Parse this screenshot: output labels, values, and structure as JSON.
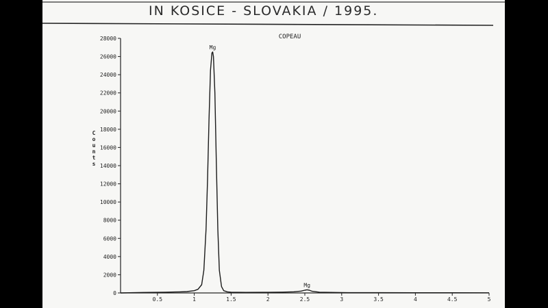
{
  "page": {
    "handwritten_note": "IN KOSICE - SLOVAKIA / 1995."
  },
  "chart_data": {
    "type": "line",
    "title": "COPEAU",
    "xlabel": "",
    "ylabel": "Counts",
    "xlim": [
      0,
      5
    ],
    "ylim": [
      0,
      28000
    ],
    "x_ticks": [
      0.5,
      1,
      1.5,
      2,
      2.5,
      3,
      3.5,
      4,
      4.5,
      5
    ],
    "x_tick_labels": [
      "0.5",
      "1",
      "1.5",
      "2",
      "2.5",
      "3",
      "3.5",
      "4",
      "4.5",
      "5"
    ],
    "y_ticks": [
      0,
      2000,
      4000,
      6000,
      8000,
      10000,
      12000,
      14000,
      16000,
      18000,
      20000,
      22000,
      24000,
      26000,
      28000
    ],
    "y_tick_labels": [
      "0",
      "2000",
      "4000",
      "6000",
      "8000",
      "10000",
      "12000",
      "14000",
      "16000",
      "18000",
      "20000",
      "22000",
      "24000",
      "26000",
      "28000"
    ],
    "annotations": [
      {
        "text": "Mg",
        "x": 1.25,
        "y": 26500
      },
      {
        "text": "Mg",
        "x": 2.53,
        "y": 350
      }
    ],
    "series": [
      {
        "color": "#1a1a1a",
        "x": [
          0.0,
          0.3,
          0.6,
          0.8,
          0.9,
          1.0,
          1.05,
          1.1,
          1.13,
          1.16,
          1.18,
          1.2,
          1.22,
          1.24,
          1.25,
          1.26,
          1.28,
          1.3,
          1.32,
          1.34,
          1.37,
          1.4,
          1.45,
          1.5,
          1.7,
          2.0,
          2.2,
          2.35,
          2.45,
          2.5,
          2.53,
          2.56,
          2.6,
          2.7,
          3.0,
          3.5,
          4.0,
          4.5,
          5.0
        ],
        "y": [
          0,
          50,
          80,
          120,
          150,
          250,
          400,
          900,
          2500,
          7000,
          12500,
          19000,
          24500,
          26400,
          26500,
          26000,
          22000,
          14000,
          7000,
          2500,
          700,
          250,
          120,
          80,
          60,
          70,
          90,
          130,
          200,
          300,
          350,
          300,
          180,
          80,
          40,
          30,
          20,
          20,
          15
        ]
      }
    ],
    "grid": false,
    "legend": "none"
  }
}
